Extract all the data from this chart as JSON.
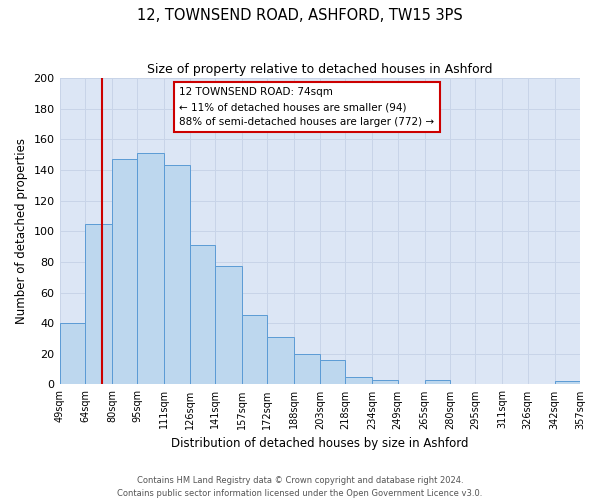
{
  "title": "12, TOWNSEND ROAD, ASHFORD, TW15 3PS",
  "subtitle": "Size of property relative to detached houses in Ashford",
  "xlabel": "Distribution of detached houses by size in Ashford",
  "ylabel": "Number of detached properties",
  "bar_edges": [
    49,
    64,
    80,
    95,
    111,
    126,
    141,
    157,
    172,
    188,
    203,
    218,
    234,
    249,
    265,
    280,
    295,
    311,
    326,
    342,
    357
  ],
  "bar_heights": [
    40,
    105,
    147,
    151,
    143,
    91,
    77,
    45,
    31,
    20,
    16,
    5,
    3,
    0,
    3,
    0,
    0,
    0,
    0,
    2
  ],
  "bar_color": "#bdd7ee",
  "bar_edge_color": "#5b9bd5",
  "vline_x": 74,
  "vline_color": "#cc0000",
  "ylim": [
    0,
    200
  ],
  "yticks": [
    0,
    20,
    40,
    60,
    80,
    100,
    120,
    140,
    160,
    180,
    200
  ],
  "annotation_title": "12 TOWNSEND ROAD: 74sqm",
  "annotation_line1": "← 11% of detached houses are smaller (94)",
  "annotation_line2": "88% of semi-detached houses are larger (772) →",
  "annotation_box_color": "#ffffff",
  "annotation_box_edge": "#cc0000",
  "grid_color": "#c8d4e8",
  "background_color": "#dce6f5",
  "footer_line1": "Contains HM Land Registry data © Crown copyright and database right 2024.",
  "footer_line2": "Contains public sector information licensed under the Open Government Licence v3.0.",
  "tick_labels": [
    "49sqm",
    "64sqm",
    "80sqm",
    "95sqm",
    "111sqm",
    "126sqm",
    "141sqm",
    "157sqm",
    "172sqm",
    "188sqm",
    "203sqm",
    "218sqm",
    "234sqm",
    "249sqm",
    "265sqm",
    "280sqm",
    "295sqm",
    "311sqm",
    "326sqm",
    "342sqm",
    "357sqm"
  ]
}
